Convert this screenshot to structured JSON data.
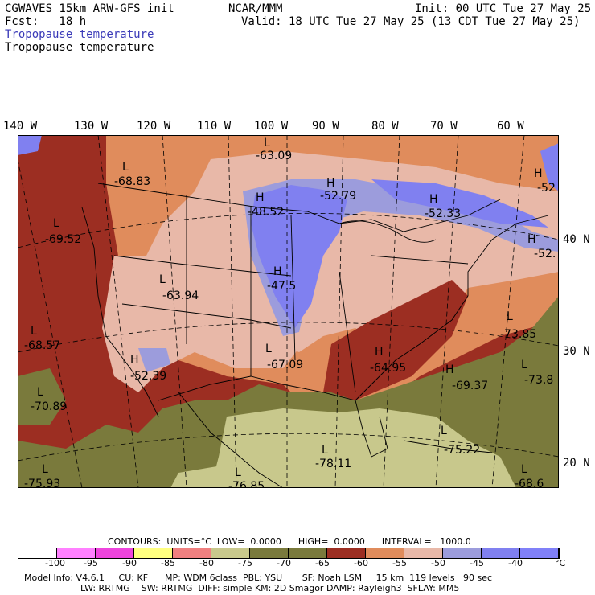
{
  "header": {
    "model": "CGWAVES 15km ARW-GFS init",
    "fcst": "Fcst:   18 h",
    "org": "NCAR/MMM",
    "init": "Init: 00 UTC Tue 27 May 25",
    "valid": "Valid: 18 UTC Tue 27 May 25 (13 CDT Tue 27 May 25)",
    "field1": "Tropopause temperature",
    "field2": "Tropopause temperature"
  },
  "lon_labels": [
    "140 W",
    "130 W",
    "120 W",
    "110 W",
    "100 W",
    "90 W",
    "80 W",
    "70 W",
    "60 W"
  ],
  "lat_labels": [
    "40 N",
    "30 N",
    "20 N"
  ],
  "extrema": [
    {
      "t": "L",
      "v": "-63.09"
    },
    {
      "t": "L",
      "v": "-68.83"
    },
    {
      "t": "H",
      "v": "-52.79"
    },
    {
      "t": "H",
      "v": "-48.52"
    },
    {
      "t": "H",
      "v": "-52.33"
    },
    {
      "t": "H",
      "v": "-52"
    },
    {
      "t": "H",
      "v": "-52."
    },
    {
      "t": "L",
      "v": "-69.52"
    },
    {
      "t": "H",
      "v": "-47.5"
    },
    {
      "t": "L",
      "v": "-63.94"
    },
    {
      "t": "L",
      "v": "-68.57"
    },
    {
      "t": "H",
      "v": "-52.39"
    },
    {
      "t": "L",
      "v": "-67.09"
    },
    {
      "t": "H",
      "v": "-64.95"
    },
    {
      "t": "H",
      "v": "-69.37"
    },
    {
      "t": "L",
      "v": "-73.85"
    },
    {
      "t": "L",
      "v": "-73.8"
    },
    {
      "t": "L",
      "v": "-70.89"
    },
    {
      "t": "L",
      "v": "-75.22"
    },
    {
      "t": "L",
      "v": "-78.11"
    },
    {
      "t": "L",
      "v": "-75.93"
    },
    {
      "t": "L",
      "v": "-76.85"
    },
    {
      "t": "L",
      "v": "-68.6"
    }
  ],
  "contours": {
    "text": "CONTOURS:  UNITS=°C  LOW=  0.0000      HIGH=  0.0000      INTERVAL=   1000.0"
  },
  "colorbar": {
    "colors": [
      "#ffffff",
      "#ff80ff",
      "#ee44dd",
      "#ffff80",
      "#f08080",
      "#c8c88c",
      "#7a7a3c",
      "#7a7a3c",
      "#9c2e22",
      "#e08c5c",
      "#e8b8a8",
      "#9c9cdc",
      "#8080f0",
      "#8080f8"
    ],
    "labels": [
      "-100",
      "-95",
      "-90",
      "-85",
      "-80",
      "-75",
      "-70",
      "-65",
      "-60",
      "-55",
      "-50",
      "-45",
      "-40"
    ],
    "unit": "°C"
  },
  "footer": {
    "line1": "Model Info: V4.6.1     CU: KF      MP: WDM 6class  PBL: YSU       SF: Noah LSM     15 km  119 levels   90 sec",
    "line2": "LW: RRTMG    SW: RRTMG  DIFF: simple KM: 2D Smagor DAMP: Rayleigh3  SFLAY: MM5"
  },
  "legend_colors": {
    "blue_high": "#8080f0",
    "light_blue": "#9c9cdc",
    "pink": "#e8b8a8",
    "orange": "#e08c5c",
    "dark_red": "#9c2e22",
    "olive": "#7a7a3c",
    "khaki": "#c8c88c"
  }
}
